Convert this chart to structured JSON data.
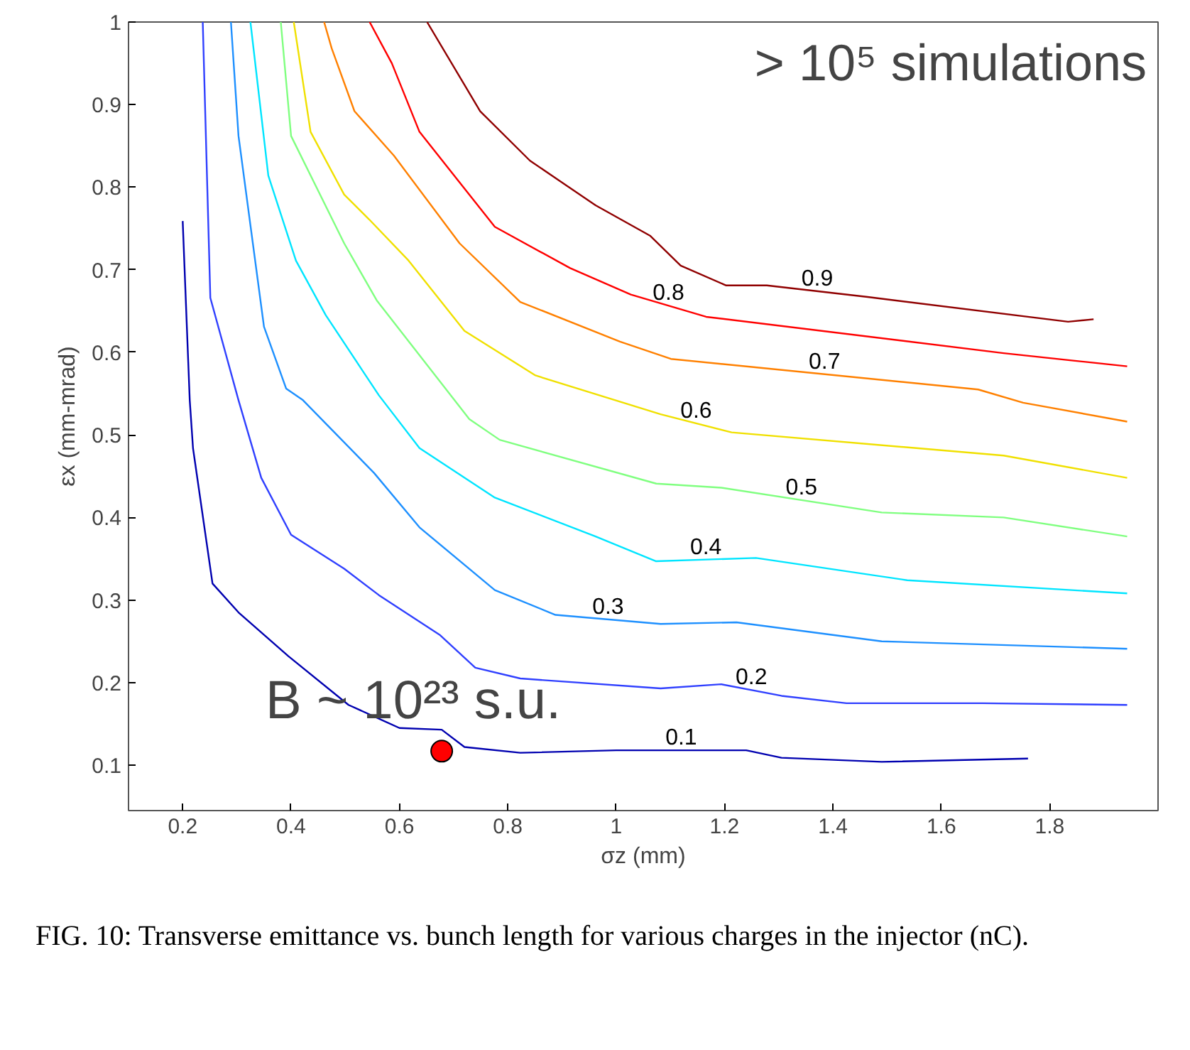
{
  "chart_data": {
    "type": "line",
    "xlabel": "σz (mm)",
    "ylabel": "εx (mm-mrad)",
    "xlim": [
      0.1,
      2.0
    ],
    "ylim": [
      0.045,
      1.0
    ],
    "xticks": [
      0.2,
      0.4,
      0.6,
      0.8,
      1,
      1.2,
      1.4,
      1.6,
      1.8
    ],
    "yticks": [
      0.1,
      0.2,
      0.3,
      0.4,
      0.5,
      0.6,
      0.7,
      0.8,
      0.9,
      1
    ],
    "grid": false,
    "marker": "none",
    "line_style": "solid",
    "series": [
      {
        "name": "0.1",
        "color": "#0000b0",
        "x": [
          0.2,
          0.213,
          0.219,
          0.255,
          0.303,
          0.395,
          0.506,
          0.6,
          0.678,
          0.72,
          0.823,
          1.0,
          1.24,
          1.305,
          1.49,
          1.76
        ],
        "values": [
          0.759,
          0.542,
          0.484,
          0.32,
          0.285,
          0.232,
          0.173,
          0.145,
          0.143,
          0.122,
          0.115,
          0.118,
          0.118,
          0.109,
          0.104,
          0.108
        ]
      },
      {
        "name": "0.2",
        "color": "#3040ff",
        "x": [
          0.237,
          0.251,
          0.303,
          0.345,
          0.4,
          0.498,
          0.562,
          0.674,
          0.74,
          0.823,
          1.082,
          1.194,
          1.305,
          1.425,
          1.676,
          1.943
        ],
        "values": [
          1.0,
          0.666,
          0.542,
          0.448,
          0.379,
          0.338,
          0.306,
          0.258,
          0.218,
          0.205,
          0.193,
          0.198,
          0.184,
          0.175,
          0.175,
          0.173
        ]
      },
      {
        "name": "0.3",
        "color": "#1e90ff",
        "x": [
          0.289,
          0.303,
          0.35,
          0.391,
          0.422,
          0.553,
          0.637,
          0.776,
          0.888,
          1.082,
          1.222,
          1.49,
          1.943
        ],
        "values": [
          1.0,
          0.862,
          0.631,
          0.556,
          0.542,
          0.454,
          0.388,
          0.312,
          0.282,
          0.271,
          0.273,
          0.25,
          0.241
        ]
      },
      {
        "name": "0.4",
        "color": "#00e5ff",
        "x": [
          0.325,
          0.358,
          0.409,
          0.464,
          0.562,
          0.637,
          0.776,
          0.962,
          1.073,
          1.258,
          1.537,
          1.943
        ],
        "values": [
          1.0,
          0.814,
          0.711,
          0.645,
          0.548,
          0.484,
          0.424,
          0.377,
          0.347,
          0.351,
          0.324,
          0.308
        ]
      },
      {
        "name": "0.5",
        "color": "#80ff80",
        "x": [
          0.381,
          0.4,
          0.498,
          0.558,
          0.729,
          0.785,
          1.074,
          1.194,
          1.49,
          1.715,
          1.943
        ],
        "values": [
          1.0,
          0.862,
          0.732,
          0.663,
          0.519,
          0.494,
          0.441,
          0.436,
          0.406,
          0.4,
          0.377
        ]
      },
      {
        "name": "0.6",
        "color": "#f0e000",
        "x": [
          0.405,
          0.436,
          0.498,
          0.544,
          0.617,
          0.72,
          0.851,
          1.082,
          1.213,
          1.715,
          1.943
        ],
        "values": [
          1.0,
          0.867,
          0.791,
          0.761,
          0.711,
          0.626,
          0.572,
          0.525,
          0.503,
          0.475,
          0.448
        ]
      },
      {
        "name": "0.7",
        "color": "#ff8000",
        "x": [
          0.461,
          0.475,
          0.517,
          0.59,
          0.711,
          0.823,
          1.007,
          1.101,
          1.668,
          1.751,
          1.943
        ],
        "values": [
          1.0,
          0.968,
          0.892,
          0.838,
          0.732,
          0.661,
          0.613,
          0.592,
          0.555,
          0.539,
          0.516
        ]
      },
      {
        "name": "0.8",
        "color": "#ff0000",
        "x": [
          0.545,
          0.586,
          0.637,
          0.776,
          0.915,
          1.027,
          1.166,
          1.715,
          1.943
        ],
        "values": [
          1.0,
          0.95,
          0.867,
          0.752,
          0.702,
          0.67,
          0.643,
          0.599,
          0.583
        ]
      },
      {
        "name": "0.9",
        "color": "#900000",
        "x": [
          0.651,
          0.749,
          0.841,
          0.962,
          1.063,
          1.119,
          1.203,
          1.278,
          1.464,
          1.834,
          1.881
        ],
        "values": [
          1.0,
          0.892,
          0.832,
          0.778,
          0.741,
          0.705,
          0.681,
          0.681,
          0.667,
          0.637,
          0.64
        ]
      },
      {
        "type": "scatter",
        "marker": "circle",
        "color": "#ff0000",
        "x": [
          0.678
        ],
        "values": [
          0.117
        ]
      }
    ],
    "annotations": [
      {
        "text": "B ~ 10²³ s.u.",
        "x": 0.678,
        "y": 0.117
      },
      "> 10⁵ simulations",
      "FIG. 10: Transverse emittance vs. bunch length for various charges in the injector (nC)."
    ]
  }
}
